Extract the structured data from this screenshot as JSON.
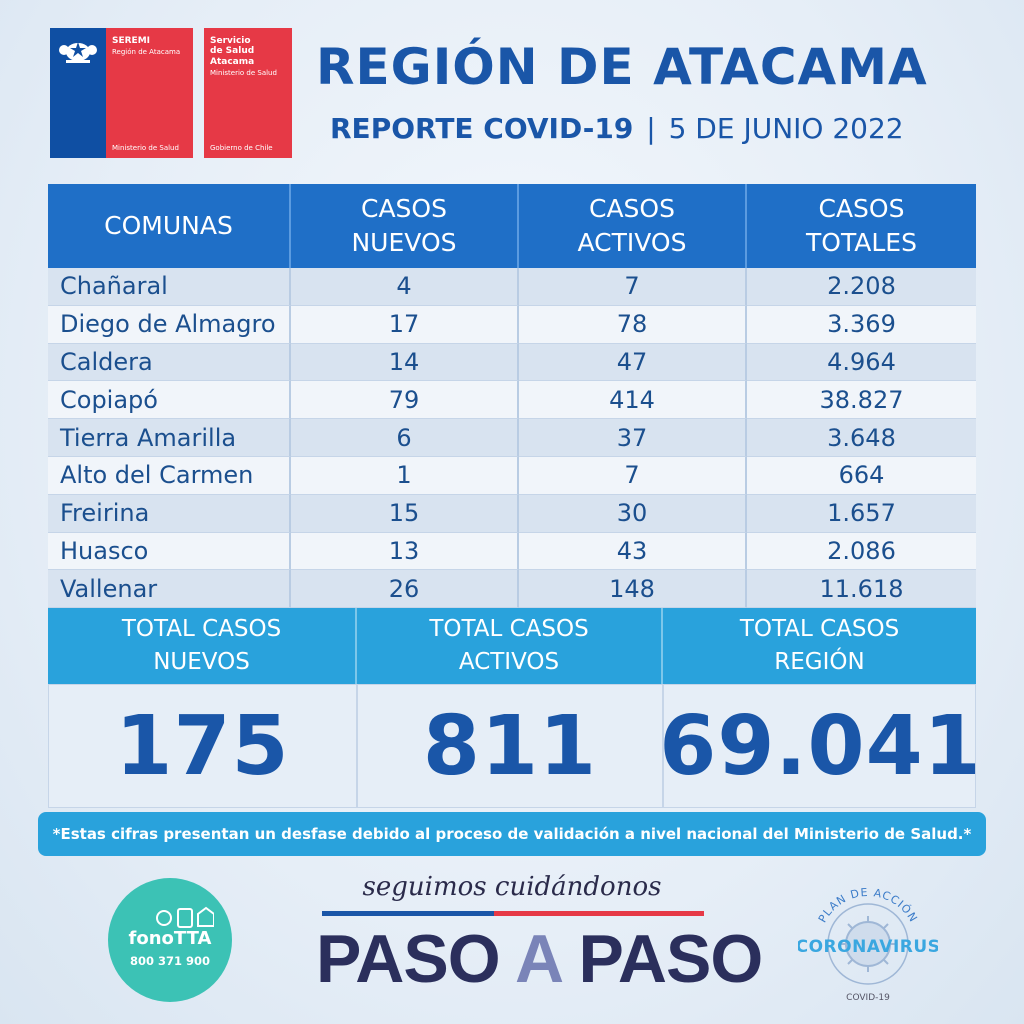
{
  "logos": {
    "seremi_title": "SEREMI",
    "seremi_sub": "Región de Atacama",
    "seremi_foot": "Ministerio de Salud",
    "salud_title_1": "Servicio",
    "salud_title_2": "de Salud",
    "salud_title_3": "Atacama",
    "salud_sub": "Ministerio de Salud",
    "salud_foot": "Gobierno de Chile",
    "colors": {
      "blue": "#0f4fa3",
      "red": "#e63946"
    }
  },
  "header": {
    "title": "REGIÓN DE ATACAMA",
    "report": "REPORTE COVID-19",
    "separator": "|",
    "date": "5 DE JUNIO 2022"
  },
  "table": {
    "headers": [
      "COMUNAS",
      "CASOS NUEVOS",
      "CASOS ACTIVOS",
      "CASOS TOTALES"
    ],
    "rows": [
      [
        "Chañaral",
        "4",
        "7",
        "2.208"
      ],
      [
        "Diego de Almagro",
        "17",
        "78",
        "3.369"
      ],
      [
        "Caldera",
        "14",
        "47",
        "4.964"
      ],
      [
        "Copiapó",
        "79",
        "414",
        "38.827"
      ],
      [
        "Tierra Amarilla",
        "6",
        "37",
        "3.648"
      ],
      [
        "Alto del Carmen",
        "1",
        "7",
        "664"
      ],
      [
        "Freirina",
        "15",
        "30",
        "1.657"
      ],
      [
        "Huasco",
        "13",
        "43",
        "2.086"
      ],
      [
        "Vallenar",
        "26",
        "148",
        "11.618"
      ]
    ]
  },
  "totals": {
    "labels": [
      "TOTAL CASOS NUEVOS",
      "TOTAL CASOS ACTIVOS",
      "TOTAL CASOS REGIÓN"
    ],
    "values": [
      "175",
      "811",
      "69.041"
    ]
  },
  "note": "*Estas cifras presentan un desfase debido al proceso de validación a nivel nacional del Ministerio de Salud.*",
  "footer": {
    "fono_name": "fonoTTA",
    "fono_phone": "800 371 900",
    "tagline": "seguimos cuidándonos",
    "paso_1": "PASO",
    "paso_a": "A",
    "paso_2": "PASO",
    "plan_top": "PLAN DE ACCIÓN",
    "plan_main": "CORONAVIRUS",
    "plan_bottom": "COVID-19"
  },
  "colors": {
    "primary_blue": "#1a56a8",
    "header_blue": "#1f6fc7",
    "light_blue": "#29a2dc",
    "teal": "#3cc2b5",
    "red": "#e63946"
  }
}
